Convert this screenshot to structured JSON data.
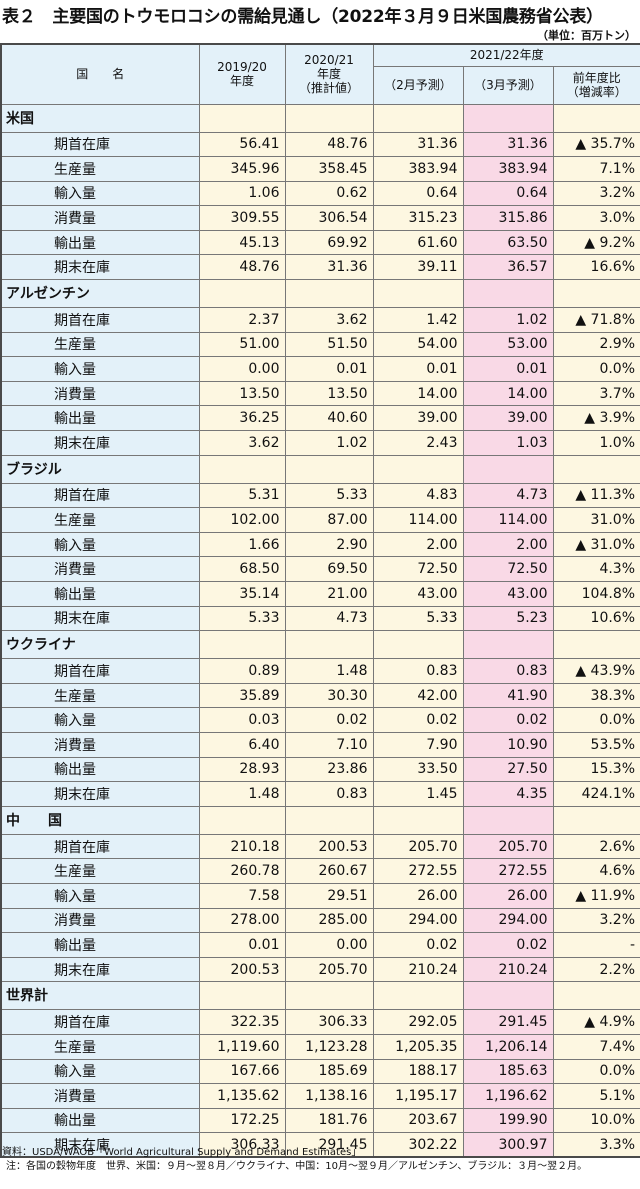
{
  "title": "表２　主要国のトウモロコシの需給見通し（2022年３月９日米国農務省公表）",
  "unit": "（単位：百万トン）",
  "headers": {
    "country": "国　　名",
    "col1": "2019/20\n年度",
    "col2": "2020/21\n年度\n（推計値）",
    "group": "2021/22年度",
    "col3": "（2月予測）",
    "col4": "（3月予測）",
    "col5": "前年度比\n（増減率）"
  },
  "groups": [
    {
      "country": "米国",
      "rows": [
        {
          "label": "期首在庫",
          "v": [
            "56.41",
            "48.76",
            "31.36",
            "31.36",
            "▲ 35.7%"
          ]
        },
        {
          "label": "生産量",
          "v": [
            "345.96",
            "358.45",
            "383.94",
            "383.94",
            "7.1%"
          ]
        },
        {
          "label": "輸入量",
          "v": [
            "1.06",
            "0.62",
            "0.64",
            "0.64",
            "3.2%"
          ]
        },
        {
          "label": "消費量",
          "v": [
            "309.55",
            "306.54",
            "315.23",
            "315.86",
            "3.0%"
          ]
        },
        {
          "label": "輸出量",
          "v": [
            "45.13",
            "69.92",
            "61.60",
            "63.50",
            "▲ 9.2%"
          ]
        },
        {
          "label": "期末在庫",
          "v": [
            "48.76",
            "31.36",
            "39.11",
            "36.57",
            "16.6%"
          ]
        }
      ]
    },
    {
      "country": "アルゼンチン",
      "rows": [
        {
          "label": "期首在庫",
          "v": [
            "2.37",
            "3.62",
            "1.42",
            "1.02",
            "▲ 71.8%"
          ]
        },
        {
          "label": "生産量",
          "v": [
            "51.00",
            "51.50",
            "54.00",
            "53.00",
            "2.9%"
          ]
        },
        {
          "label": "輸入量",
          "v": [
            "0.00",
            "0.01",
            "0.01",
            "0.01",
            "0.0%"
          ]
        },
        {
          "label": "消費量",
          "v": [
            "13.50",
            "13.50",
            "14.00",
            "14.00",
            "3.7%"
          ]
        },
        {
          "label": "輸出量",
          "v": [
            "36.25",
            "40.60",
            "39.00",
            "39.00",
            "▲ 3.9%"
          ]
        },
        {
          "label": "期末在庫",
          "v": [
            "3.62",
            "1.02",
            "2.43",
            "1.03",
            "1.0%"
          ]
        }
      ]
    },
    {
      "country": "ブラジル",
      "rows": [
        {
          "label": "期首在庫",
          "v": [
            "5.31",
            "5.33",
            "4.83",
            "4.73",
            "▲ 11.3%"
          ]
        },
        {
          "label": "生産量",
          "v": [
            "102.00",
            "87.00",
            "114.00",
            "114.00",
            "31.0%"
          ]
        },
        {
          "label": "輸入量",
          "v": [
            "1.66",
            "2.90",
            "2.00",
            "2.00",
            "▲ 31.0%"
          ]
        },
        {
          "label": "消費量",
          "v": [
            "68.50",
            "69.50",
            "72.50",
            "72.50",
            "4.3%"
          ]
        },
        {
          "label": "輸出量",
          "v": [
            "35.14",
            "21.00",
            "43.00",
            "43.00",
            "104.8%"
          ]
        },
        {
          "label": "期末在庫",
          "v": [
            "5.33",
            "4.73",
            "5.33",
            "5.23",
            "10.6%"
          ]
        }
      ]
    },
    {
      "country": "ウクライナ",
      "rows": [
        {
          "label": "期首在庫",
          "v": [
            "0.89",
            "1.48",
            "0.83",
            "0.83",
            "▲ 43.9%"
          ]
        },
        {
          "label": "生産量",
          "v": [
            "35.89",
            "30.30",
            "42.00",
            "41.90",
            "38.3%"
          ]
        },
        {
          "label": "輸入量",
          "v": [
            "0.03",
            "0.02",
            "0.02",
            "0.02",
            "0.0%"
          ]
        },
        {
          "label": "消費量",
          "v": [
            "6.40",
            "7.10",
            "7.90",
            "10.90",
            "53.5%"
          ]
        },
        {
          "label": "輸出量",
          "v": [
            "28.93",
            "23.86",
            "33.50",
            "27.50",
            "15.3%"
          ]
        },
        {
          "label": "期末在庫",
          "v": [
            "1.48",
            "0.83",
            "1.45",
            "4.35",
            "424.1%"
          ]
        }
      ]
    },
    {
      "country": "中　　国",
      "rows": [
        {
          "label": "期首在庫",
          "v": [
            "210.18",
            "200.53",
            "205.70",
            "205.70",
            "2.6%"
          ]
        },
        {
          "label": "生産量",
          "v": [
            "260.78",
            "260.67",
            "272.55",
            "272.55",
            "4.6%"
          ]
        },
        {
          "label": "輸入量",
          "v": [
            "7.58",
            "29.51",
            "26.00",
            "26.00",
            "▲ 11.9%"
          ]
        },
        {
          "label": "消費量",
          "v": [
            "278.00",
            "285.00",
            "294.00",
            "294.00",
            "3.2%"
          ]
        },
        {
          "label": "輸出量",
          "v": [
            "0.01",
            "0.00",
            "0.02",
            "0.02",
            "-"
          ]
        },
        {
          "label": "期末在庫",
          "v": [
            "200.53",
            "205.70",
            "210.24",
            "210.24",
            "2.2%"
          ]
        }
      ]
    },
    {
      "country": "世界計",
      "rows": [
        {
          "label": "期首在庫",
          "v": [
            "322.35",
            "306.33",
            "292.05",
            "291.45",
            "▲ 4.9%"
          ]
        },
        {
          "label": "生産量",
          "v": [
            "1,119.60",
            "1,123.28",
            "1,205.35",
            "1,206.14",
            "7.4%"
          ]
        },
        {
          "label": "輸入量",
          "v": [
            "167.66",
            "185.69",
            "188.17",
            "185.63",
            "0.0%"
          ]
        },
        {
          "label": "消費量",
          "v": [
            "1,135.62",
            "1,138.16",
            "1,195.17",
            "1,196.62",
            "5.1%"
          ]
        },
        {
          "label": "輸出量",
          "v": [
            "172.25",
            "181.76",
            "203.67",
            "199.90",
            "10.0%"
          ]
        },
        {
          "label": "期末在庫",
          "v": [
            "306.33",
            "291.45",
            "302.22",
            "300.97",
            "3.3%"
          ]
        }
      ]
    }
  ],
  "footer": {
    "source": "資料：USDA/WAOB「World Agricultural Supply and Demand Estimates」",
    "note": "注：各国の穀物年度　世界、米国：９月～翌８月／ウクライナ、中国：10月～翌９月／アルゼンチン、ブラジル：３月～翌２月。"
  }
}
